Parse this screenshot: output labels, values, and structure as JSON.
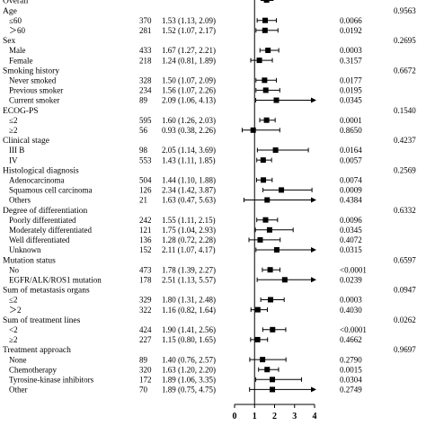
{
  "chart_data": {
    "type": "forest",
    "xlim": [
      0,
      4
    ],
    "x_ticks": [
      "0",
      "1",
      "2",
      "3",
      "4"
    ],
    "reference_line": 1,
    "rows": [
      {
        "kind": "group",
        "label": "Overall",
        "n": null,
        "ci_text": "",
        "p": "",
        "pint": ""
      },
      {
        "kind": "group",
        "label": "Age",
        "n": null,
        "ci_text": "",
        "p": "",
        "pint": "0.9563"
      },
      {
        "kind": "sub",
        "label": "≤60",
        "n": "370",
        "ci_text": "1.53 (1.13, 2.09)",
        "hr": 1.53,
        "lo": 1.13,
        "hi": 2.09,
        "p": "0.0066",
        "pint": ""
      },
      {
        "kind": "sub",
        "label": "＞60",
        "n": "281",
        "ci_text": "1.52 (1.07, 2.17)",
        "hr": 1.52,
        "lo": 1.07,
        "hi": 2.17,
        "p": "0.0192",
        "pint": ""
      },
      {
        "kind": "group",
        "label": "Sex",
        "n": null,
        "ci_text": "",
        "p": "",
        "pint": "0.2695"
      },
      {
        "kind": "sub",
        "label": "Male",
        "n": "433",
        "ci_text": "1.67 (1.27, 2.21)",
        "hr": 1.67,
        "lo": 1.27,
        "hi": 2.21,
        "p": "0.0003",
        "pint": ""
      },
      {
        "kind": "sub",
        "label": "Female",
        "n": "218",
        "ci_text": "1.24 (0.81, 1.89)",
        "hr": 1.24,
        "lo": 0.81,
        "hi": 1.89,
        "p": "0.3157",
        "pint": ""
      },
      {
        "kind": "group",
        "label": "Smoking history",
        "n": null,
        "ci_text": "",
        "p": "",
        "pint": "0.6672"
      },
      {
        "kind": "sub",
        "label": "Never smoked",
        "n": "328",
        "ci_text": "1.50 (1.07, 2.09)",
        "hr": 1.5,
        "lo": 1.07,
        "hi": 2.09,
        "p": "0.0177",
        "pint": ""
      },
      {
        "kind": "sub",
        "label": "Previous smoker",
        "n": "234",
        "ci_text": "1.56 (1.07, 2.26)",
        "hr": 1.56,
        "lo": 1.07,
        "hi": 2.26,
        "p": "0.0195",
        "pint": ""
      },
      {
        "kind": "sub",
        "label": "Current smoker",
        "n": "89",
        "ci_text": "2.09 (1.06, 4.13)",
        "hr": 2.09,
        "lo": 1.06,
        "hi": 4.13,
        "p": "0.0345",
        "pint": ""
      },
      {
        "kind": "group",
        "label": "ECOG-PS",
        "n": null,
        "ci_text": "",
        "p": "",
        "pint": "0.1540"
      },
      {
        "kind": "sub",
        "label": "≤2",
        "n": "595",
        "ci_text": "1.60 (1.26, 2.03)",
        "hr": 1.6,
        "lo": 1.26,
        "hi": 2.03,
        "p": "0.0001",
        "pint": ""
      },
      {
        "kind": "sub",
        "label": "≥2",
        "n": "56",
        "ci_text": "0.93 (0.38, 2.26)",
        "hr": 0.93,
        "lo": 0.38,
        "hi": 2.26,
        "p": "0.8650",
        "pint": ""
      },
      {
        "kind": "group",
        "label": "Clinical stage",
        "n": null,
        "ci_text": "",
        "p": "",
        "pint": "0.4237"
      },
      {
        "kind": "sub",
        "label": "III B",
        "n": "98",
        "ci_text": "2.05 (1.14, 3.69)",
        "hr": 2.05,
        "lo": 1.14,
        "hi": 3.69,
        "p": "0.0164",
        "pint": ""
      },
      {
        "kind": "sub",
        "label": "IV",
        "n": "553",
        "ci_text": "1.43 (1.11, 1.85)",
        "hr": 1.43,
        "lo": 1.11,
        "hi": 1.85,
        "p": "0.0057",
        "pint": ""
      },
      {
        "kind": "group",
        "label": "Histological diagnosis",
        "n": null,
        "ci_text": "",
        "p": "",
        "pint": "0.2569"
      },
      {
        "kind": "sub",
        "label": "Adenocarcinoma",
        "n": "504",
        "ci_text": "1.44 (1.10, 1.88)",
        "hr": 1.44,
        "lo": 1.1,
        "hi": 1.88,
        "p": "0.0074",
        "pint": ""
      },
      {
        "kind": "sub",
        "label": "Squamous cell carcinoma",
        "n": "126",
        "ci_text": "2.34 (1.42, 3.87)",
        "hr": 2.34,
        "lo": 1.42,
        "hi": 3.87,
        "p": "0.0009",
        "pint": ""
      },
      {
        "kind": "sub",
        "label": "Others",
        "n": "21",
        "ci_text": "1.63 (0.47, 5.63)",
        "hr": 1.63,
        "lo": 0.47,
        "hi": 5.63,
        "p": "0.4384",
        "pint": ""
      },
      {
        "kind": "group",
        "label": "Degree of differentiation",
        "n": null,
        "ci_text": "",
        "p": "",
        "pint": "0.6332"
      },
      {
        "kind": "sub",
        "label": "Poorly differentiated",
        "n": "242",
        "ci_text": "1.55 (1.11, 2.15)",
        "hr": 1.55,
        "lo": 1.11,
        "hi": 2.15,
        "p": "0.0096",
        "pint": ""
      },
      {
        "kind": "sub",
        "label": "Moderately differentiated",
        "n": "121",
        "ci_text": "1.75 (1.04, 2.93)",
        "hr": 1.75,
        "lo": 1.04,
        "hi": 2.93,
        "p": "0.0345",
        "pint": ""
      },
      {
        "kind": "sub",
        "label": "Well differentiated",
        "n": "136",
        "ci_text": "1.28 (0.72, 2.28)",
        "hr": 1.28,
        "lo": 0.72,
        "hi": 2.28,
        "p": "0.4072",
        "pint": ""
      },
      {
        "kind": "sub",
        "label": "Unknown",
        "n": "152",
        "ci_text": "2.11 (1.07, 4.17)",
        "hr": 2.11,
        "lo": 1.07,
        "hi": 4.17,
        "p": "0.0315",
        "pint": ""
      },
      {
        "kind": "group",
        "label": "Mutation status",
        "n": null,
        "ci_text": "",
        "p": "",
        "pint": "0.6597"
      },
      {
        "kind": "sub",
        "label": "No",
        "n": "473",
        "ci_text": "1.78 (1.39, 2.27)",
        "hr": 1.78,
        "lo": 1.39,
        "hi": 2.27,
        "p": "<0.0001",
        "pint": ""
      },
      {
        "kind": "sub",
        "label": "EGFR/ALK/ROS1 mutation",
        "n": "178",
        "ci_text": "2.51 (1.13, 5.57)",
        "hr": 2.51,
        "lo": 1.13,
        "hi": 5.57,
        "p": "0.0239",
        "pint": ""
      },
      {
        "kind": "group",
        "label": "Sum of metastasis organs",
        "n": null,
        "ci_text": "",
        "p": "",
        "pint": "0.0947"
      },
      {
        "kind": "sub",
        "label": "≤2",
        "n": "329",
        "ci_text": "1.80 (1.31, 2.48)",
        "hr": 1.8,
        "lo": 1.31,
        "hi": 2.48,
        "p": "0.0003",
        "pint": ""
      },
      {
        "kind": "sub",
        "label": "＞2",
        "n": "322",
        "ci_text": "1.16 (0.82, 1.64)",
        "hr": 1.16,
        "lo": 0.82,
        "hi": 1.64,
        "p": "0.4030",
        "pint": ""
      },
      {
        "kind": "group",
        "label": "Sum of treatment lines",
        "n": null,
        "ci_text": "",
        "p": "",
        "pint": "0.0262"
      },
      {
        "kind": "sub",
        "label": "<2",
        "n": "424",
        "ci_text": "1.90 (1.41, 2.56)",
        "hr": 1.9,
        "lo": 1.41,
        "hi": 2.56,
        "p": "<0.0001",
        "pint": ""
      },
      {
        "kind": "sub",
        "label": "≥2",
        "n": "227",
        "ci_text": "1.15 (0.80, 1.65)",
        "hr": 1.15,
        "lo": 0.8,
        "hi": 1.65,
        "p": "0.4662",
        "pint": ""
      },
      {
        "kind": "group",
        "label": "Treatment approach",
        "n": null,
        "ci_text": "",
        "p": "",
        "pint": "0.9697"
      },
      {
        "kind": "sub",
        "label": "None",
        "n": "89",
        "ci_text": "1.40 (0.76, 2.57)",
        "hr": 1.4,
        "lo": 0.76,
        "hi": 2.57,
        "p": "0.2790",
        "pint": ""
      },
      {
        "kind": "sub",
        "label": "Chemotherapy",
        "n": "320",
        "ci_text": "1.63 (1.20, 2.20)",
        "hr": 1.63,
        "lo": 1.2,
        "hi": 2.2,
        "p": "0.0015",
        "pint": ""
      },
      {
        "kind": "sub",
        "label": "Tyrosine-kinase inhibitors",
        "n": "172",
        "ci_text": "1.89 (1.06, 3.35)",
        "hr": 1.89,
        "lo": 1.06,
        "hi": 3.35,
        "p": "0.0304",
        "pint": ""
      },
      {
        "kind": "sub",
        "label": "Other",
        "n": "70",
        "ci_text": "1.89 (0.75, 4.75)",
        "hr": 1.89,
        "lo": 0.75,
        "hi": 4.75,
        "p": "0.2749",
        "pint": ""
      }
    ]
  }
}
